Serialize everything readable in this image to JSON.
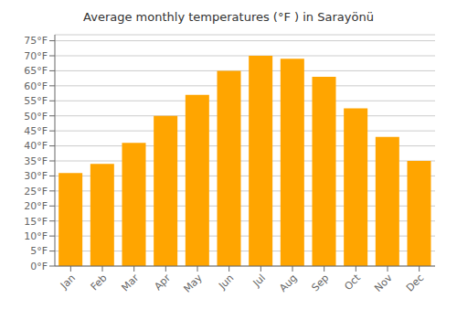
{
  "chart_data": {
    "type": "bar",
    "title": "Average monthly temperatures (°F ) in Sarayönü",
    "categories": [
      "Jan",
      "Feb",
      "Mar",
      "Apr",
      "May",
      "Jun",
      "Jul",
      "Aug",
      "Sep",
      "Oct",
      "Nov",
      "Dec"
    ],
    "values": [
      31,
      34,
      41,
      50,
      57,
      65,
      70,
      69,
      63,
      52.5,
      43,
      35
    ],
    "color": "#FFA500",
    "ylim": [
      0,
      77
    ],
    "yticks": [
      {
        "value": 0,
        "label": "0°F"
      },
      {
        "value": 5,
        "label": "5°F"
      },
      {
        "value": 10,
        "label": "10°F"
      },
      {
        "value": 15,
        "label": "15°F"
      },
      {
        "value": 20,
        "label": "20°F"
      },
      {
        "value": 25,
        "label": "25°F"
      },
      {
        "value": 30,
        "label": "30°F"
      },
      {
        "value": 35,
        "label": "35°F"
      },
      {
        "value": 40,
        "label": "40°F"
      },
      {
        "value": 45,
        "label": "45°F"
      },
      {
        "value": 50,
        "label": "50°F"
      },
      {
        "value": 55,
        "label": "55°F"
      },
      {
        "value": 60,
        "label": "60°F"
      },
      {
        "value": 65,
        "label": "65°F"
      },
      {
        "value": 70,
        "label": "70°F"
      },
      {
        "value": 75,
        "label": "75°F"
      }
    ],
    "grid": true
  }
}
